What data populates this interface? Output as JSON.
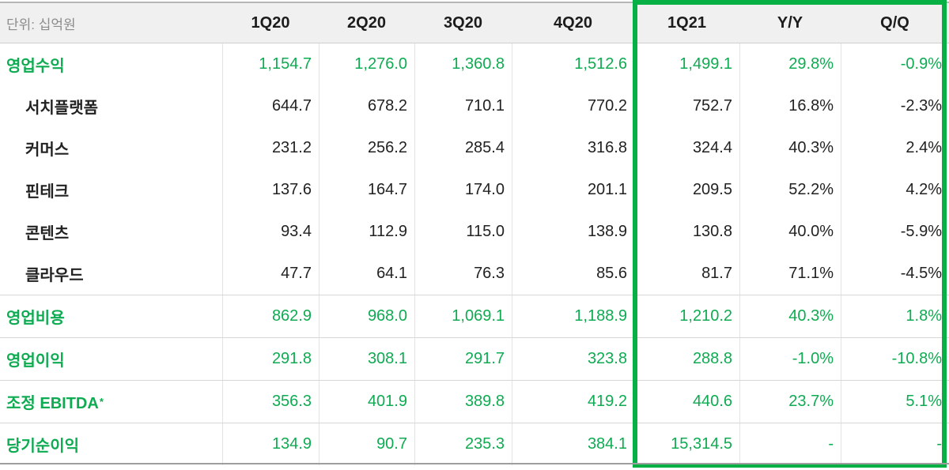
{
  "colors": {
    "green_text": "#0FAB52",
    "green_border": "#06B045",
    "header_bg": "#f0f0f0",
    "black_text": "#222222"
  },
  "chart_data": {
    "type": "table",
    "unit_label": "단위: 십억원",
    "columns": [
      "1Q20",
      "2Q20",
      "3Q20",
      "4Q20",
      "1Q21",
      "Y/Y",
      "Q/Q"
    ],
    "highlight_box_columns": [
      "1Q21",
      "Y/Y",
      "Q/Q"
    ],
    "rows": [
      {
        "label": "영업수익",
        "emphasis": "green",
        "indent": 0,
        "divider_above": false,
        "values": [
          "1,154.7",
          "1,276.0",
          "1,360.8",
          "1,512.6",
          "1,499.1",
          "29.8%",
          "-0.9%"
        ]
      },
      {
        "label": "서치플랫폼",
        "emphasis": "black",
        "indent": 1,
        "divider_above": false,
        "values": [
          "644.7",
          "678.2",
          "710.1",
          "770.2",
          "752.7",
          "16.8%",
          "-2.3%"
        ]
      },
      {
        "label": "커머스",
        "emphasis": "black",
        "indent": 1,
        "divider_above": false,
        "values": [
          "231.2",
          "256.2",
          "285.4",
          "316.8",
          "324.4",
          "40.3%",
          "2.4%"
        ]
      },
      {
        "label": "핀테크",
        "emphasis": "black",
        "indent": 1,
        "divider_above": false,
        "values": [
          "137.6",
          "164.7",
          "174.0",
          "201.1",
          "209.5",
          "52.2%",
          "4.2%"
        ]
      },
      {
        "label": "콘텐츠",
        "emphasis": "black",
        "indent": 1,
        "divider_above": false,
        "values": [
          "93.4",
          "112.9",
          "115.0",
          "138.9",
          "130.8",
          "40.0%",
          "-5.9%"
        ]
      },
      {
        "label": "클라우드",
        "emphasis": "black",
        "indent": 1,
        "divider_above": false,
        "values": [
          "47.7",
          "64.1",
          "76.3",
          "85.6",
          "81.7",
          "71.1%",
          "-4.5%"
        ]
      },
      {
        "label": "영업비용",
        "emphasis": "green",
        "indent": 0,
        "divider_above": true,
        "values": [
          "862.9",
          "968.0",
          "1,069.1",
          "1,188.9",
          "1,210.2",
          "40.3%",
          "1.8%"
        ]
      },
      {
        "label": "영업이익",
        "emphasis": "green",
        "indent": 0,
        "divider_above": true,
        "values": [
          "291.8",
          "308.1",
          "291.7",
          "323.8",
          "288.8",
          "-1.0%",
          "-10.8%"
        ]
      },
      {
        "label": "조정 EBITDA",
        "suffix": "*",
        "emphasis": "green",
        "indent": 0,
        "divider_above": true,
        "values": [
          "356.3",
          "401.9",
          "389.8",
          "419.2",
          "440.6",
          "23.7%",
          "5.1%"
        ]
      },
      {
        "label": "당기순이익",
        "emphasis": "green",
        "indent": 0,
        "divider_above": true,
        "values": [
          "134.9",
          "90.7",
          "235.3",
          "384.1",
          "15,314.5",
          "-",
          "-"
        ]
      }
    ]
  }
}
